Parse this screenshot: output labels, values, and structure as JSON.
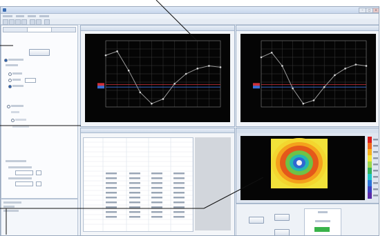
{
  "window": {
    "min": "–",
    "max": "□",
    "close": "×"
  },
  "left_panel": {
    "tabs": [
      "",
      "",
      ""
    ],
    "primary_button": ""
  },
  "chart_windows": [
    {
      "chart_data": {
        "type": "line",
        "series": [
          {
            "color": "#9a9a9a",
            "y": [
              0.78,
              0.84,
              0.55,
              0.22,
              0.05,
              0.12,
              0.35,
              0.5,
              0.58,
              0.62,
              0.6
            ]
          }
        ],
        "reference_lines": [
          {
            "color": "#d0303a",
            "y": 0.34
          },
          {
            "color": "#3b6fd6",
            "y": 0.3
          }
        ],
        "grid": true
      }
    },
    {
      "chart_data": {
        "type": "line",
        "series": [
          {
            "color": "#9a9a9a",
            "y": [
              0.75,
              0.82,
              0.62,
              0.28,
              0.05,
              0.1,
              0.3,
              0.48,
              0.58,
              0.64,
              0.62
            ]
          }
        ],
        "reference_lines": [
          {
            "color": "#d0303a",
            "y": 0.34
          },
          {
            "color": "#3b6fd6",
            "y": 0.3
          }
        ],
        "grid": true
      }
    }
  ],
  "heatmap": {
    "colorbar": [
      "#d81e1e",
      "#f06a1a",
      "#f6b01e",
      "#f3e53a",
      "#9bd64a",
      "#34b35a",
      "#1ec6c6",
      "#2b74d8",
      "#3b3fc0",
      "#5a2aa8"
    ]
  },
  "controls": {
    "status_value_color": "#39b34a"
  }
}
